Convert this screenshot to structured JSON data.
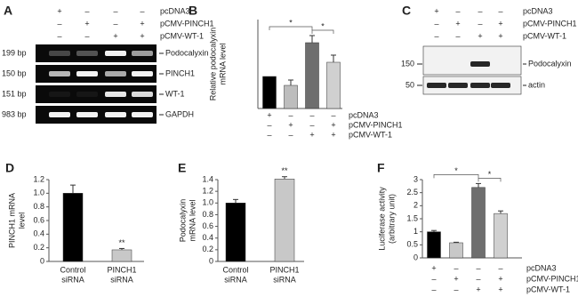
{
  "gel_a": {
    "panel": "A",
    "conditions": [
      {
        "name": "pcDNA3",
        "signs": [
          "+",
          "–",
          "–",
          "–"
        ]
      },
      {
        "name": "pCMV-PINCH1",
        "signs": [
          "–",
          "+",
          "–",
          "+"
        ]
      },
      {
        "name": "pCMV-WT-1",
        "signs": [
          "–",
          "–",
          "+",
          "+"
        ]
      }
    ],
    "rows": [
      {
        "size": "199 bp",
        "label": "Podocalyxin"
      },
      {
        "size": "150 bp",
        "label": "PINCH1"
      },
      {
        "size": "151 bp",
        "label": "WT-1"
      },
      {
        "size": "983 bp",
        "label": "GAPDH"
      }
    ]
  },
  "blot_c": {
    "panel": "C",
    "conditions": [
      {
        "name": "pcDNA3",
        "signs": [
          "+",
          "–",
          "–",
          "–"
        ]
      },
      {
        "name": "pCMV-PINCH1",
        "signs": [
          "–",
          "+",
          "–",
          "+"
        ]
      },
      {
        "name": "pCMV-WT-1",
        "signs": [
          "–",
          "–",
          "+",
          "+"
        ]
      }
    ],
    "rows": [
      {
        "marker": "150",
        "label": "Podocalyxin"
      },
      {
        "marker": "50",
        "label": "actin"
      }
    ]
  },
  "chart_data": [
    {
      "type": "bar",
      "panel": "B",
      "y_label": [
        "Relative podocalyxin",
        "mRNA level"
      ],
      "values": [
        0.9,
        0.65,
        1.85,
        1.3
      ],
      "errors": [
        0.0,
        0.15,
        0.2,
        0.2
      ],
      "colors": [
        "#000000",
        "#bdbdbd",
        "#6e6e6e",
        "#d0d0d0"
      ],
      "ylim": [
        0,
        2.5
      ],
      "significance": [
        "*",
        "*"
      ],
      "conditions": [
        {
          "name": "pcDNA3",
          "signs": [
            "+",
            "–",
            "–",
            "–"
          ]
        },
        {
          "name": "pCMV-PINCH1",
          "signs": [
            "–",
            "+",
            "–",
            "+"
          ]
        },
        {
          "name": "pCMV-WT-1",
          "signs": [
            "–",
            "–",
            "+",
            "+"
          ]
        }
      ]
    },
    {
      "type": "bar",
      "panel": "D",
      "y_label": [
        "PINCH1 mRNA",
        "level"
      ],
      "categories": [
        [
          "Control",
          "siRNA"
        ],
        [
          "PINCH1",
          "siRNA"
        ]
      ],
      "values": [
        1.0,
        0.17
      ],
      "errors": [
        0.12,
        0.02
      ],
      "colors": [
        "#000000",
        "#c8c8c8"
      ],
      "ylim": [
        0,
        1.2
      ],
      "yticks": [
        0,
        0.2,
        0.4,
        0.6,
        0.8,
        {
          "value": 1,
          "label": "1.0"
        },
        1.2
      ],
      "significance": [
        "**"
      ]
    },
    {
      "type": "bar",
      "panel": "E",
      "y_label": [
        "Podocalyxin",
        "mRNA level"
      ],
      "categories": [
        [
          "Control",
          "siRNA"
        ],
        [
          "PINCH1",
          "siRNA"
        ]
      ],
      "values": [
        1.0,
        1.41
      ],
      "errors": [
        0.06,
        0.04
      ],
      "colors": [
        "#000000",
        "#c8c8c8"
      ],
      "ylim": [
        0,
        1.4
      ],
      "yticks": [
        0,
        0.2,
        0.4,
        0.6,
        0.8,
        {
          "value": 1,
          "label": "1.0"
        },
        1.2,
        1.4
      ],
      "significance": [
        "**"
      ]
    },
    {
      "type": "bar",
      "panel": "F",
      "y_label": [
        "Luciferase activity",
        "(arbitrary unit)"
      ],
      "values": [
        1.0,
        0.58,
        2.7,
        1.7
      ],
      "errors": [
        0.05,
        0.02,
        0.15,
        0.1
      ],
      "colors": [
        "#000000",
        "#c8c8c8",
        "#6e6e6e",
        "#d0d0d0"
      ],
      "ylim": [
        0,
        3
      ],
      "yticks": [
        0,
        0.5,
        1,
        1.5,
        2,
        2.5,
        3
      ],
      "significance": [
        "*",
        "*"
      ],
      "conditions": [
        {
          "name": "pcDNA3",
          "signs": [
            "+",
            "–",
            "–",
            "–"
          ]
        },
        {
          "name": "pCMV-PINCH1",
          "signs": [
            "–",
            "+",
            "–",
            "+"
          ]
        },
        {
          "name": "pCMV-WT-1",
          "signs": [
            "–",
            "–",
            "+",
            "+"
          ]
        }
      ]
    }
  ]
}
